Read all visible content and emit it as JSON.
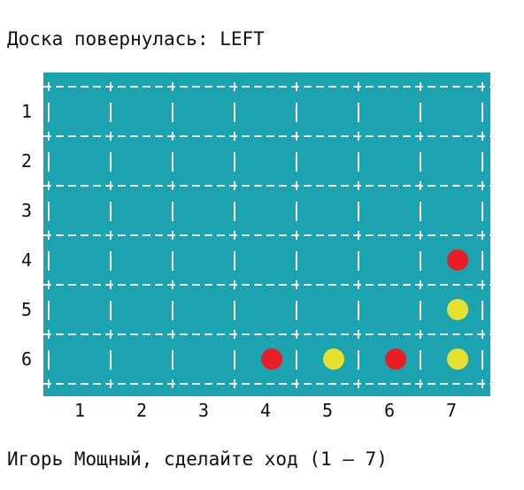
{
  "status_text": "Доска повернулась: LEFT",
  "prompt_text": "Игорь Мощный, сделайте ход (1 – 7)",
  "board": {
    "rows": 6,
    "columns": 7,
    "row_labels": [
      "1",
      "2",
      "3",
      "4",
      "5",
      "6"
    ],
    "column_labels": [
      "1",
      "2",
      "3",
      "4",
      "5",
      "6",
      "7"
    ],
    "pieces": [
      {
        "row": 4,
        "col": 7,
        "color": "red"
      },
      {
        "row": 5,
        "col": 7,
        "color": "yellow"
      },
      {
        "row": 6,
        "col": 4,
        "color": "red"
      },
      {
        "row": 6,
        "col": 5,
        "color": "yellow"
      },
      {
        "row": 6,
        "col": 6,
        "color": "red"
      },
      {
        "row": 6,
        "col": 7,
        "color": "yellow"
      }
    ]
  },
  "colors": {
    "board_background": "#1ba3af",
    "grid_lines": "#ffffff",
    "red_piece": "#e81d26",
    "yellow_piece": "#e6e02e",
    "text": "#111111"
  }
}
